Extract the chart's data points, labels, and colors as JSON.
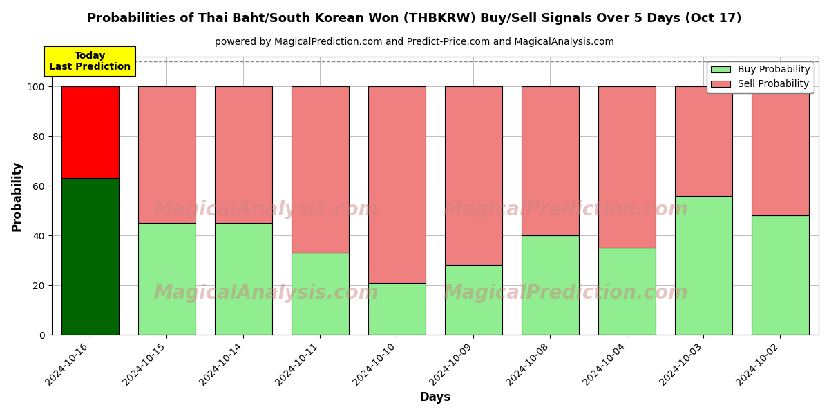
{
  "title": "Probabilities of Thai Baht/South Korean Won (THBKRW) Buy/Sell Signals Over 5 Days (Oct 17)",
  "subtitle": "powered by MagicalPrediction.com and Predict-Price.com and MagicalAnalysis.com",
  "xlabel": "Days",
  "ylabel": "Probability",
  "categories": [
    "2024-10-16",
    "2024-10-15",
    "2024-10-14",
    "2024-10-11",
    "2024-10-10",
    "2024-10-09",
    "2024-10-08",
    "2024-10-04",
    "2024-10-03",
    "2024-10-02"
  ],
  "buy_values": [
    63,
    45,
    45,
    33,
    21,
    28,
    40,
    35,
    56,
    48
  ],
  "sell_values": [
    37,
    55,
    55,
    67,
    79,
    72,
    60,
    65,
    44,
    52
  ],
  "buy_color_today": "#006400",
  "sell_color_today": "#FF0000",
  "buy_color_normal": "#90EE90",
  "sell_color_normal": "#F08080",
  "bar_edge_color": "#000000",
  "ylim": [
    0,
    112
  ],
  "dashed_line_y": 110,
  "today_label": "Today\nLast Prediction",
  "today_box_color": "#FFFF00",
  "legend_buy": "Buy Probability",
  "legend_sell": "Sell Probability",
  "title_fontsize": 13,
  "subtitle_fontsize": 10,
  "axis_label_fontsize": 12,
  "tick_fontsize": 10,
  "bar_width": 0.75
}
